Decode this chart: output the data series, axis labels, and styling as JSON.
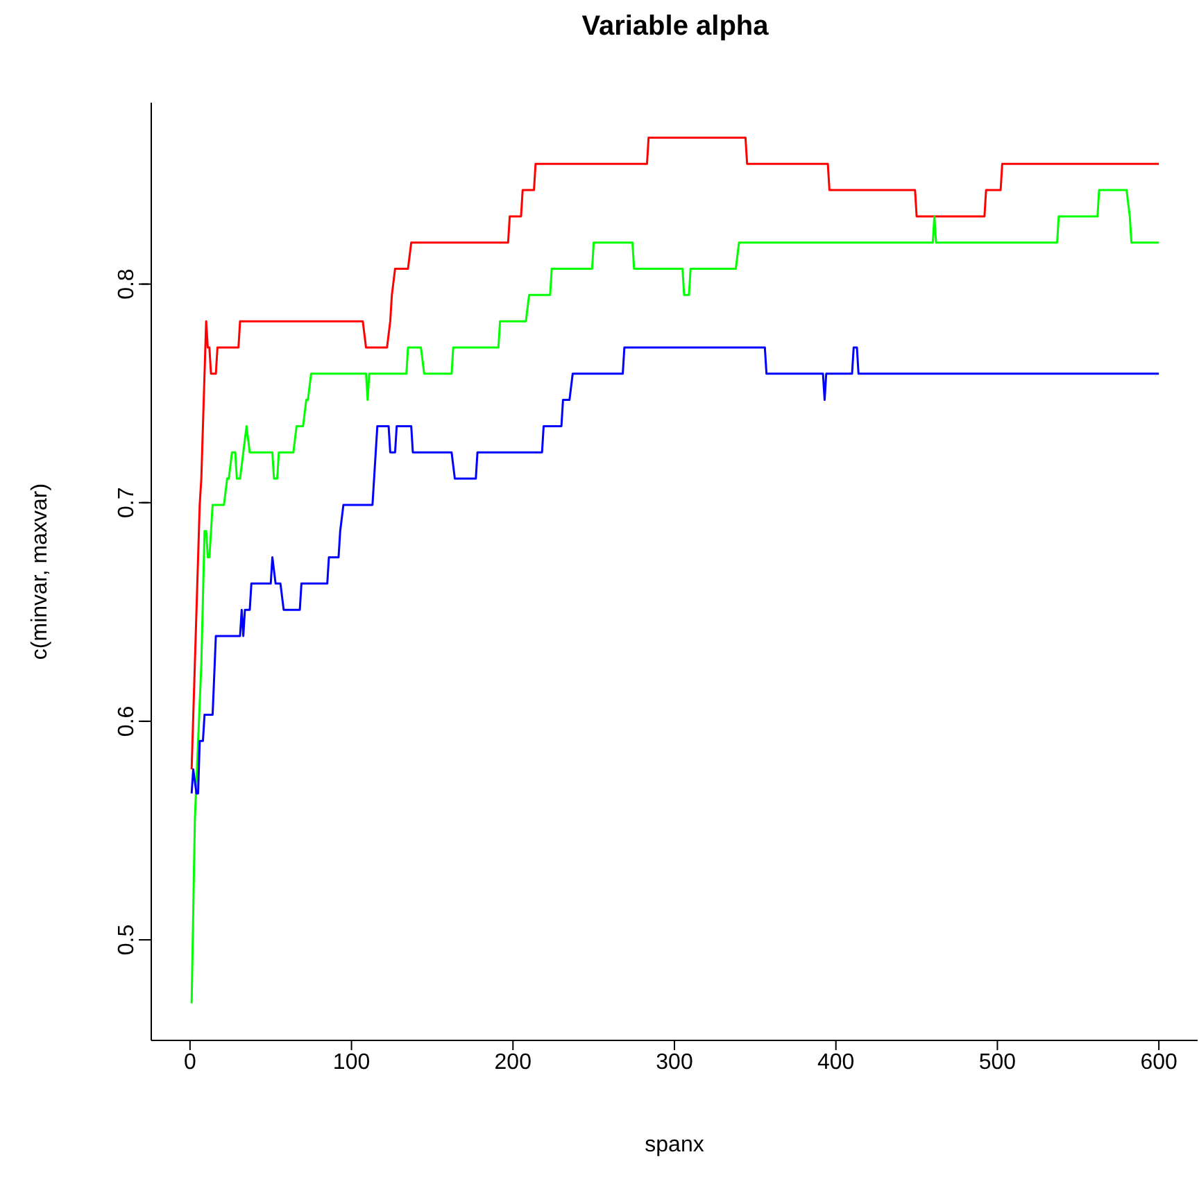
{
  "chart_data": {
    "type": "line",
    "title": "Variable alpha",
    "xlabel": "spanx",
    "ylabel": "c(minvar, maxvar)",
    "xlim": [
      -24,
      624
    ],
    "ylim": [
      0.454,
      0.883
    ],
    "xticks": [
      0,
      100,
      200,
      300,
      400,
      500,
      600
    ],
    "yticks": [
      0.5,
      0.6,
      0.7,
      0.8
    ],
    "grid": false,
    "legend": false,
    "marker": "none",
    "line_style": "solid",
    "series": [
      {
        "color": "#ff0000",
        "x": [
          1,
          6,
          7,
          10,
          11,
          12,
          13,
          16,
          17,
          30,
          31,
          107,
          109,
          122,
          124,
          125,
          127,
          135,
          137,
          197,
          198,
          205,
          206,
          213,
          214,
          283,
          284,
          344,
          345,
          395,
          396,
          449,
          450,
          492,
          493,
          502,
          503,
          600
        ],
        "values": [
          0.578,
          0.699,
          0.711,
          0.783,
          0.771,
          0.771,
          0.759,
          0.759,
          0.771,
          0.771,
          0.783,
          0.783,
          0.771,
          0.771,
          0.783,
          0.795,
          0.807,
          0.807,
          0.819,
          0.819,
          0.831,
          0.831,
          0.843,
          0.843,
          0.855,
          0.855,
          0.867,
          0.867,
          0.855,
          0.855,
          0.843,
          0.843,
          0.831,
          0.831,
          0.843,
          0.843,
          0.855,
          0.855
        ]
      },
      {
        "color": "#00ff00",
        "x": [
          1,
          3,
          7,
          9,
          10,
          11,
          12,
          14,
          21,
          23,
          24,
          26,
          28,
          29,
          31,
          33,
          35,
          37,
          51,
          52,
          54,
          55,
          64,
          66,
          70,
          72,
          73,
          75,
          109,
          110,
          111,
          134,
          135,
          143,
          145,
          162,
          163,
          191,
          192,
          208,
          210,
          223,
          224,
          249,
          250,
          274,
          275,
          305,
          306,
          309,
          310,
          338,
          340,
          460,
          461,
          462,
          537,
          538,
          562,
          563,
          580,
          582,
          583,
          600
        ],
        "values": [
          0.471,
          0.555,
          0.626,
          0.687,
          0.687,
          0.675,
          0.675,
          0.699,
          0.699,
          0.711,
          0.711,
          0.723,
          0.723,
          0.711,
          0.711,
          0.723,
          0.735,
          0.723,
          0.723,
          0.711,
          0.711,
          0.723,
          0.723,
          0.735,
          0.735,
          0.747,
          0.747,
          0.759,
          0.759,
          0.747,
          0.759,
          0.759,
          0.771,
          0.771,
          0.759,
          0.759,
          0.771,
          0.771,
          0.783,
          0.783,
          0.795,
          0.795,
          0.807,
          0.807,
          0.819,
          0.819,
          0.807,
          0.807,
          0.795,
          0.795,
          0.807,
          0.807,
          0.819,
          0.819,
          0.831,
          0.819,
          0.819,
          0.831,
          0.831,
          0.843,
          0.843,
          0.831,
          0.819,
          0.819
        ]
      },
      {
        "color": "#0000ff",
        "x": [
          1,
          2,
          4,
          5,
          6,
          8,
          9,
          14,
          16,
          31,
          32,
          33,
          34,
          37,
          38,
          50,
          51,
          53,
          56,
          58,
          68,
          69,
          85,
          86,
          92,
          93,
          95,
          113,
          116,
          123,
          124,
          127,
          128,
          137,
          138,
          162,
          164,
          177,
          178,
          218,
          219,
          230,
          231,
          235,
          237,
          268,
          269,
          356,
          357,
          392,
          393,
          394,
          410,
          411,
          413,
          414,
          600
        ],
        "values": [
          0.567,
          0.578,
          0.567,
          0.567,
          0.591,
          0.591,
          0.603,
          0.603,
          0.639,
          0.639,
          0.651,
          0.639,
          0.651,
          0.651,
          0.663,
          0.663,
          0.675,
          0.663,
          0.663,
          0.651,
          0.651,
          0.663,
          0.663,
          0.675,
          0.675,
          0.687,
          0.699,
          0.699,
          0.735,
          0.735,
          0.723,
          0.723,
          0.735,
          0.735,
          0.723,
          0.723,
          0.711,
          0.711,
          0.723,
          0.723,
          0.735,
          0.735,
          0.747,
          0.747,
          0.759,
          0.759,
          0.771,
          0.771,
          0.759,
          0.759,
          0.747,
          0.759,
          0.759,
          0.771,
          0.771,
          0.759,
          0.759
        ]
      }
    ]
  }
}
